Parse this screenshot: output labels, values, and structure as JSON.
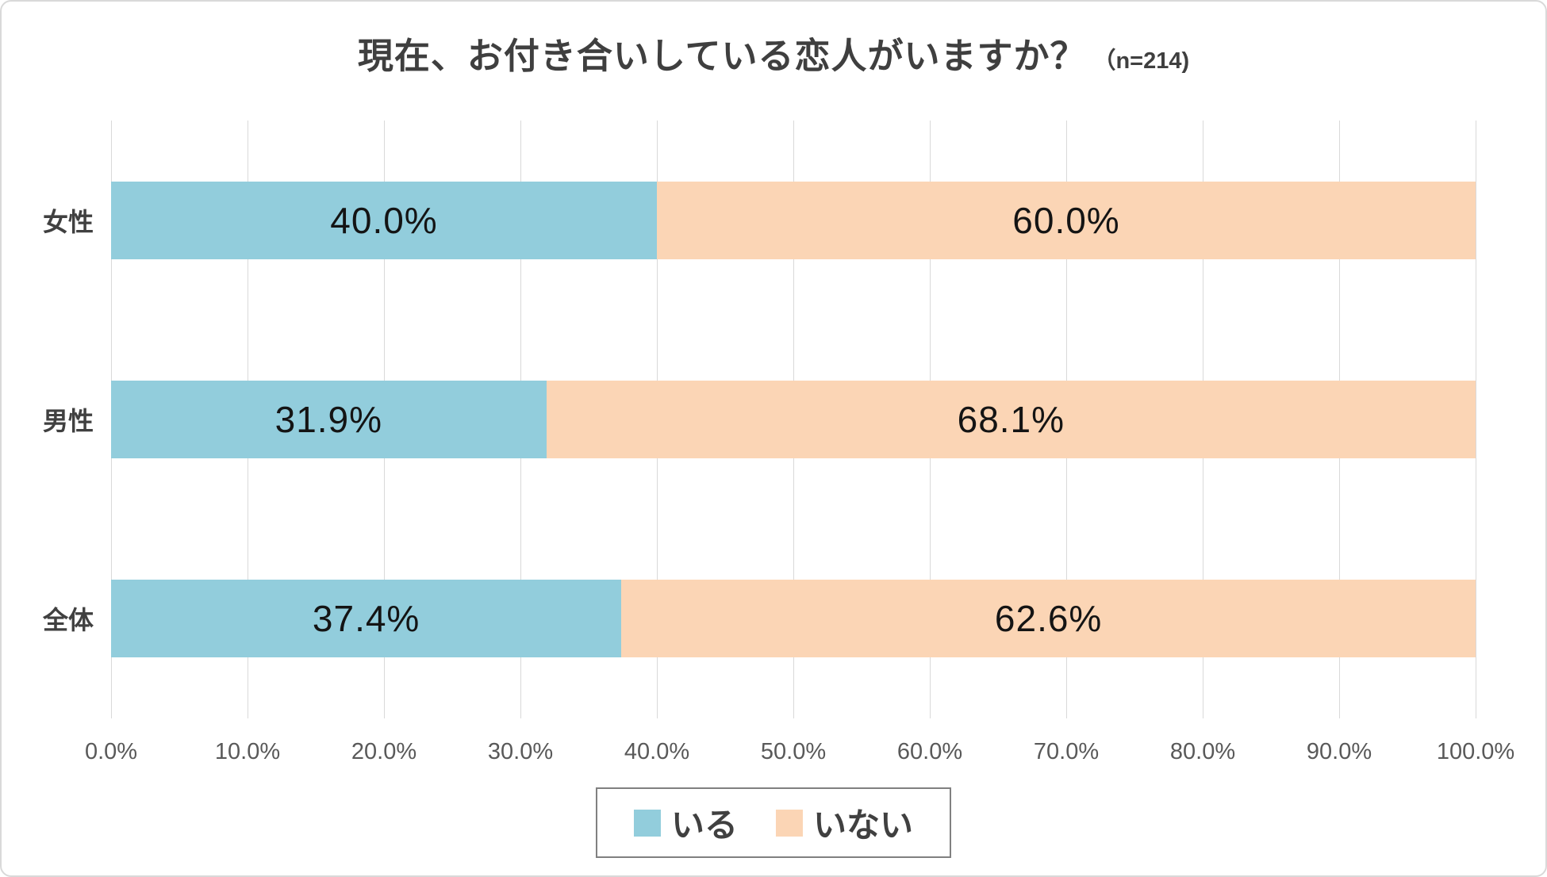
{
  "title": {
    "main": "現在、お付き合いしている恋人がいますか？",
    "sample": "（n=214)"
  },
  "chart_data": {
    "type": "bar",
    "orientation": "horizontal-stacked",
    "title": "現在、お付き合いしている恋人がいますか？（n=214)",
    "categories": [
      "女性",
      "男性",
      "全体"
    ],
    "series": [
      {
        "name": "いる",
        "color": "#92CDDC",
        "values": [
          40.0,
          31.9,
          37.4
        ]
      },
      {
        "name": "いない",
        "color": "#FBD5B5",
        "values": [
          60.0,
          68.1,
          62.6
        ]
      }
    ],
    "data_labels": [
      [
        "40.0%",
        "60.0%"
      ],
      [
        "31.9%",
        "68.1%"
      ],
      [
        "37.4%",
        "62.6%"
      ]
    ],
    "x_ticks": [
      "0.0%",
      "10.0%",
      "20.0%",
      "30.0%",
      "40.0%",
      "50.0%",
      "60.0%",
      "70.0%",
      "80.0%",
      "90.0%",
      "100.0%"
    ],
    "xlim": [
      0,
      100
    ],
    "grid": "vertical",
    "legend_position": "bottom",
    "colors": {
      "gridline": "#D9D9D9",
      "title_text": "#3F3F3F",
      "axis_text": "#595959",
      "category_text": "#404040",
      "data_label_text": "#141414",
      "legend_border": "#808080"
    }
  }
}
